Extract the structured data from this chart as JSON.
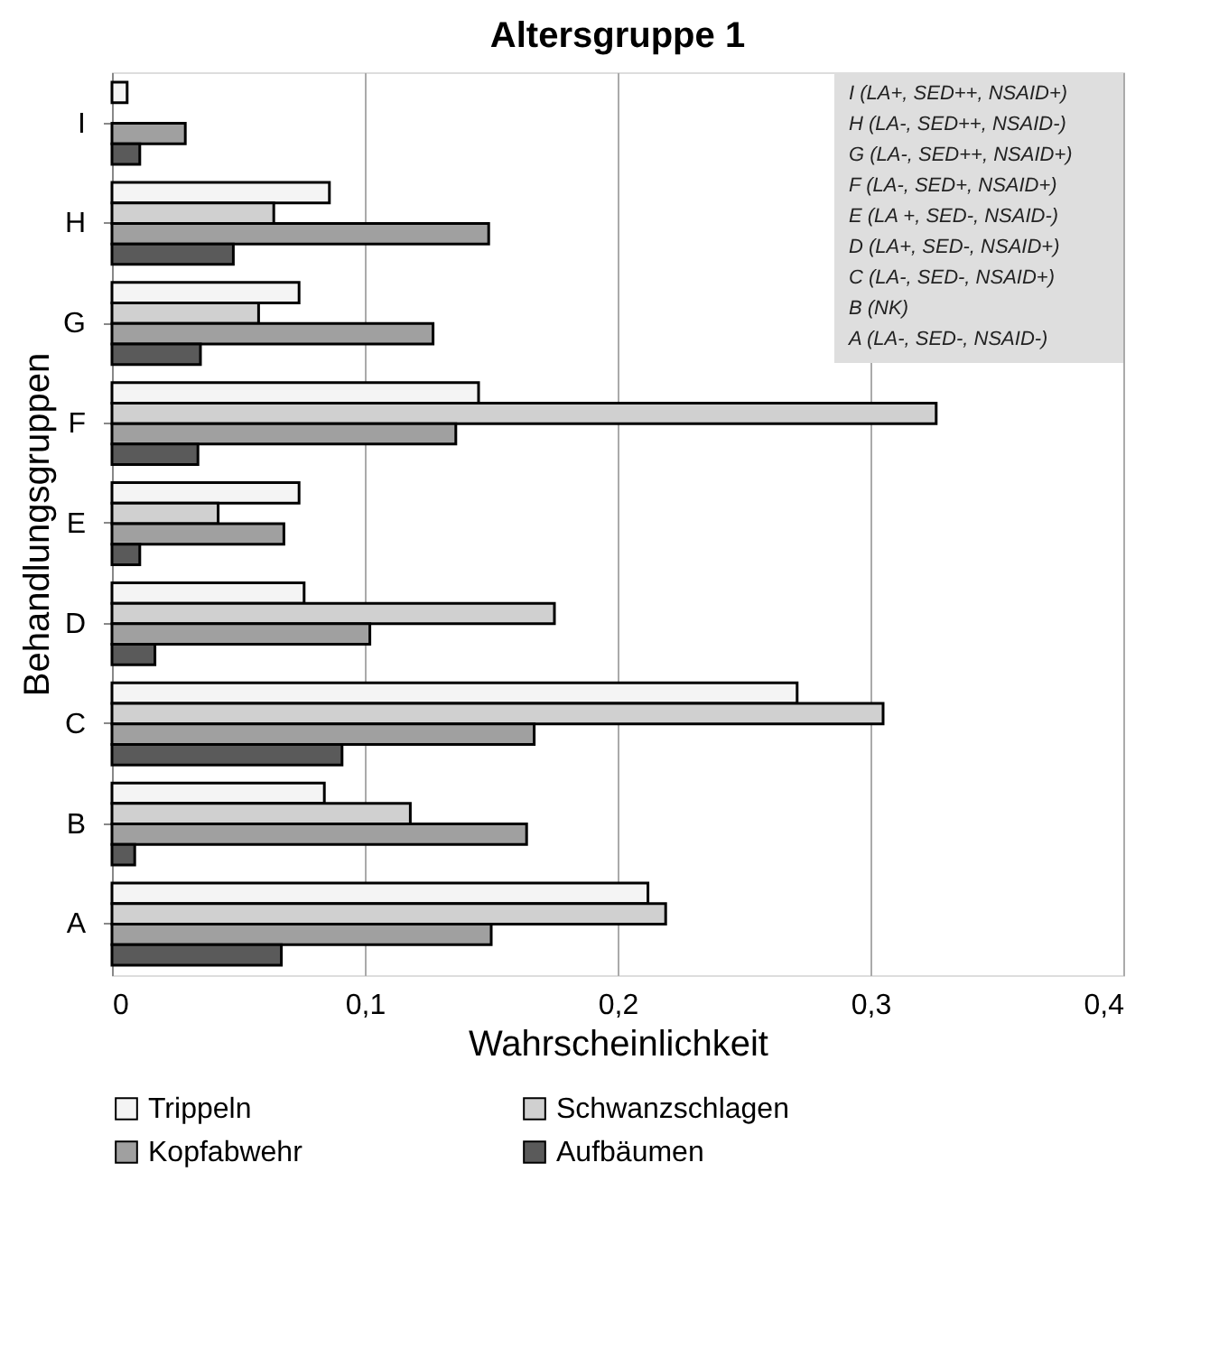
{
  "chart_data": {
    "type": "bar",
    "orientation": "horizontal",
    "title": "Altersgruppe 1",
    "xlabel": "Wahrscheinlichkeit",
    "ylabel": "Behandlungsgruppen",
    "categories": [
      "I",
      "H",
      "G",
      "F",
      "E",
      "D",
      "C",
      "B",
      "A"
    ],
    "series": [
      {
        "name": "Trippeln",
        "color": "#f4f4f4",
        "values": [
          0.006,
          0.086,
          0.074,
          0.145,
          0.074,
          0.076,
          0.271,
          0.084,
          0.212
        ]
      },
      {
        "name": "Schwanzschlagen",
        "color": "#d0d0d0",
        "values": [
          null,
          0.064,
          0.058,
          0.326,
          0.042,
          0.175,
          0.305,
          0.118,
          0.219
        ]
      },
      {
        "name": "Kopfabwehr",
        "color": "#a0a0a0",
        "values": [
          0.029,
          0.149,
          0.127,
          0.136,
          0.068,
          0.102,
          0.167,
          0.164,
          0.15
        ]
      },
      {
        "name": "Aufbäumen",
        "color": "#5a5a5a",
        "values": [
          0.011,
          0.048,
          0.035,
          0.034,
          0.011,
          0.017,
          0.091,
          0.009,
          0.067
        ]
      }
    ],
    "xlim": [
      0,
      0.4
    ],
    "xticks": [
      0,
      {
        "value": 0.1,
        "label": "0,1"
      },
      {
        "value": 0.2,
        "label": "0,2"
      },
      {
        "value": 0.3,
        "label": "0,3"
      },
      {
        "value": 0.4,
        "label": "0,4"
      }
    ],
    "grid": "x",
    "legend": "bottom",
    "annotations": [
      "I (LA+, SED++, NSAID+)",
      "H (LA-, SED++, NSAID-)",
      "G (LA-, SED++, NSAID+)",
      "F (LA-, SED+, NSAID+)",
      "E (LA +, SED-, NSAID-)",
      "D (LA+, SED-, NSAID+)",
      "C (LA-, SED-, NSAID+)",
      "B (NK)",
      "A (LA-, SED-, NSAID-)"
    ]
  }
}
